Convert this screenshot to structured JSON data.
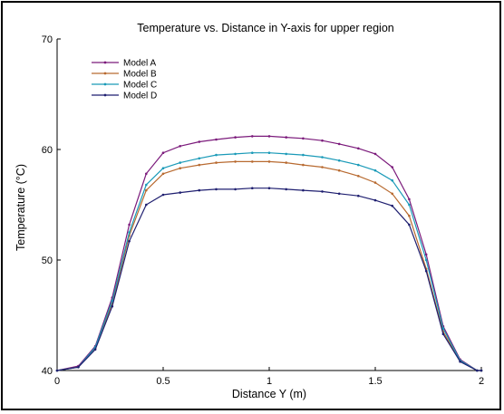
{
  "chart_data": {
    "type": "line",
    "title": "Temperature vs. Distance in Y-axis for upper region",
    "xlabel": "Distance Y (m)",
    "ylabel": "Temperature (°C)",
    "xlim": [
      0,
      2
    ],
    "ylim": [
      40,
      70
    ],
    "xticks": [
      0,
      0.5,
      1,
      1.5,
      2
    ],
    "xtick_labels": [
      "0",
      "0.5",
      "1",
      "1.5",
      "2"
    ],
    "yticks": [
      40,
      50,
      60,
      70
    ],
    "ytick_labels": [
      "40",
      "50",
      "60",
      "70"
    ],
    "grid": false,
    "legend_position": "top-left",
    "series": [
      {
        "name": "Model A",
        "color": "#7b1a7b",
        "x": [
          0,
          0.1,
          0.18,
          0.26,
          0.34,
          0.42,
          0.5,
          0.58,
          0.67,
          0.75,
          0.84,
          0.92,
          1.0,
          1.08,
          1.16,
          1.25,
          1.33,
          1.42,
          1.5,
          1.58,
          1.66,
          1.74,
          1.82,
          1.9,
          1.98,
          2.0
        ],
        "y": [
          40,
          40.4,
          42.2,
          46.6,
          53.2,
          57.8,
          59.7,
          60.3,
          60.7,
          60.9,
          61.1,
          61.2,
          61.2,
          61.1,
          61.0,
          60.8,
          60.5,
          60.1,
          59.6,
          58.4,
          55.5,
          50.5,
          44.0,
          41.0,
          40.0,
          40.0
        ]
      },
      {
        "name": "Model B",
        "color": "#b86a30",
        "x": [
          0,
          0.1,
          0.18,
          0.26,
          0.34,
          0.42,
          0.5,
          0.58,
          0.67,
          0.75,
          0.84,
          0.92,
          1.0,
          1.08,
          1.16,
          1.25,
          1.33,
          1.42,
          1.5,
          1.58,
          1.66,
          1.74,
          1.82,
          1.9,
          1.98,
          2.0
        ],
        "y": [
          40,
          40.3,
          42.0,
          46.1,
          52.2,
          56.3,
          57.8,
          58.3,
          58.6,
          58.8,
          58.9,
          58.9,
          58.9,
          58.8,
          58.6,
          58.4,
          58.1,
          57.6,
          57.0,
          56.0,
          54.0,
          49.2,
          43.5,
          40.9,
          40.0,
          40.0
        ]
      },
      {
        "name": "Model C",
        "color": "#1a9ab8",
        "x": [
          0,
          0.1,
          0.18,
          0.26,
          0.34,
          0.42,
          0.5,
          0.58,
          0.67,
          0.75,
          0.84,
          0.92,
          1.0,
          1.08,
          1.16,
          1.25,
          1.33,
          1.42,
          1.5,
          1.58,
          1.66,
          1.74,
          1.82,
          1.9,
          1.98,
          2.0
        ],
        "y": [
          40,
          40.3,
          42.1,
          46.3,
          52.5,
          56.8,
          58.3,
          58.8,
          59.2,
          59.5,
          59.6,
          59.7,
          59.7,
          59.6,
          59.5,
          59.3,
          59.0,
          58.6,
          58.1,
          57.2,
          55.0,
          50.0,
          43.8,
          40.9,
          40.0,
          40.0
        ]
      },
      {
        "name": "Model D",
        "color": "#1f1f70",
        "x": [
          0,
          0.1,
          0.18,
          0.26,
          0.34,
          0.42,
          0.5,
          0.58,
          0.67,
          0.75,
          0.84,
          0.92,
          1.0,
          1.08,
          1.16,
          1.25,
          1.33,
          1.42,
          1.5,
          1.58,
          1.66,
          1.74,
          1.82,
          1.9,
          1.98,
          2.0
        ],
        "y": [
          40,
          40.3,
          41.9,
          45.8,
          51.7,
          55.0,
          55.9,
          56.1,
          56.3,
          56.4,
          56.4,
          56.5,
          56.5,
          56.4,
          56.3,
          56.2,
          56.0,
          55.8,
          55.4,
          54.9,
          53.2,
          49.0,
          43.3,
          40.8,
          40.0,
          40.0
        ]
      }
    ]
  }
}
